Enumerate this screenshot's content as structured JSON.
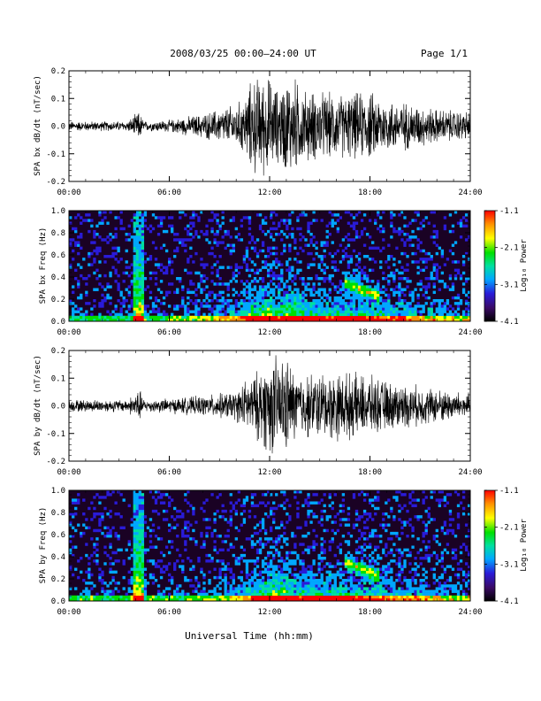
{
  "header": {
    "title": "2008/03/25  00:00–24:00 UT",
    "page": "Page 1/1"
  },
  "footer": {
    "xlabel": "Universal Time (hh:mm)"
  },
  "colorbar": {
    "label": "Log₁₀ Power",
    "ticks": [
      "-1.1",
      "-2.1",
      "-3.1",
      "-4.1"
    ],
    "range": [
      -4.1,
      -1.1
    ],
    "colors": [
      "#000000",
      "#3a0a64",
      "#2a1bd8",
      "#00a8ff",
      "#00e0a0",
      "#00e000",
      "#ffff00",
      "#ff9000",
      "#ff0000"
    ]
  },
  "chart_data": [
    {
      "type": "line",
      "ylabel": "SPA bx dB/dt (nT/sec)",
      "xticks": [
        "00:00",
        "06:00",
        "12:00",
        "18:00",
        "24:00"
      ],
      "yticks": [
        "0.2",
        "0.1",
        "0.0",
        "-0.1",
        "-0.2"
      ],
      "xlim": [
        0,
        24
      ],
      "ylim": [
        -0.2,
        0.2
      ],
      "envelope": {
        "hours": [
          0,
          3.5,
          4.2,
          4.5,
          6,
          8,
          10,
          10.5,
          11,
          12,
          12.5,
          13,
          13.5,
          14,
          16,
          18,
          19,
          20,
          22,
          24
        ],
        "amplitude": [
          0.02,
          0.02,
          0.06,
          0.02,
          0.025,
          0.05,
          0.09,
          0.12,
          0.2,
          0.2,
          0.15,
          0.2,
          0.2,
          0.15,
          0.13,
          0.14,
          0.11,
          0.1,
          0.07,
          0.06
        ]
      }
    },
    {
      "type": "heatmap",
      "ylabel": "SPA bx Freq (Hz)",
      "xticks": [
        "00:00",
        "06:00",
        "12:00",
        "18:00",
        "24:00"
      ],
      "yticks": [
        "1.0",
        "0.8",
        "0.6",
        "0.4",
        "0.2",
        "0.0"
      ],
      "xlim": [
        0,
        24
      ],
      "ylim": [
        0,
        1.0
      ]
    },
    {
      "type": "line",
      "ylabel": "SPA by dB/dt (nT/sec)",
      "xticks": [
        "00:00",
        "06:00",
        "12:00",
        "18:00",
        "24:00"
      ],
      "yticks": [
        "0.2",
        "0.1",
        "0.0",
        "-0.1",
        "-0.2"
      ],
      "xlim": [
        0,
        24
      ],
      "ylim": [
        -0.2,
        0.2
      ],
      "envelope": {
        "hours": [
          0,
          3.5,
          4.2,
          4.5,
          6,
          8,
          10,
          10.5,
          11,
          12,
          12.5,
          13,
          13.5,
          14,
          16,
          18,
          19,
          20,
          22,
          24
        ],
        "amplitude": [
          0.025,
          0.025,
          0.07,
          0.025,
          0.03,
          0.04,
          0.06,
          0.1,
          0.12,
          0.2,
          0.2,
          0.2,
          0.14,
          0.13,
          0.14,
          0.12,
          0.1,
          0.09,
          0.07,
          0.05
        ]
      }
    },
    {
      "type": "heatmap",
      "ylabel": "SPA by Freq (Hz)",
      "xticks": [
        "00:00",
        "06:00",
        "12:00",
        "18:00",
        "24:00"
      ],
      "yticks": [
        "1.0",
        "0.8",
        "0.6",
        "0.4",
        "0.2",
        "0.0"
      ],
      "xlim": [
        0,
        24
      ],
      "ylim": [
        0,
        1.0
      ]
    }
  ]
}
